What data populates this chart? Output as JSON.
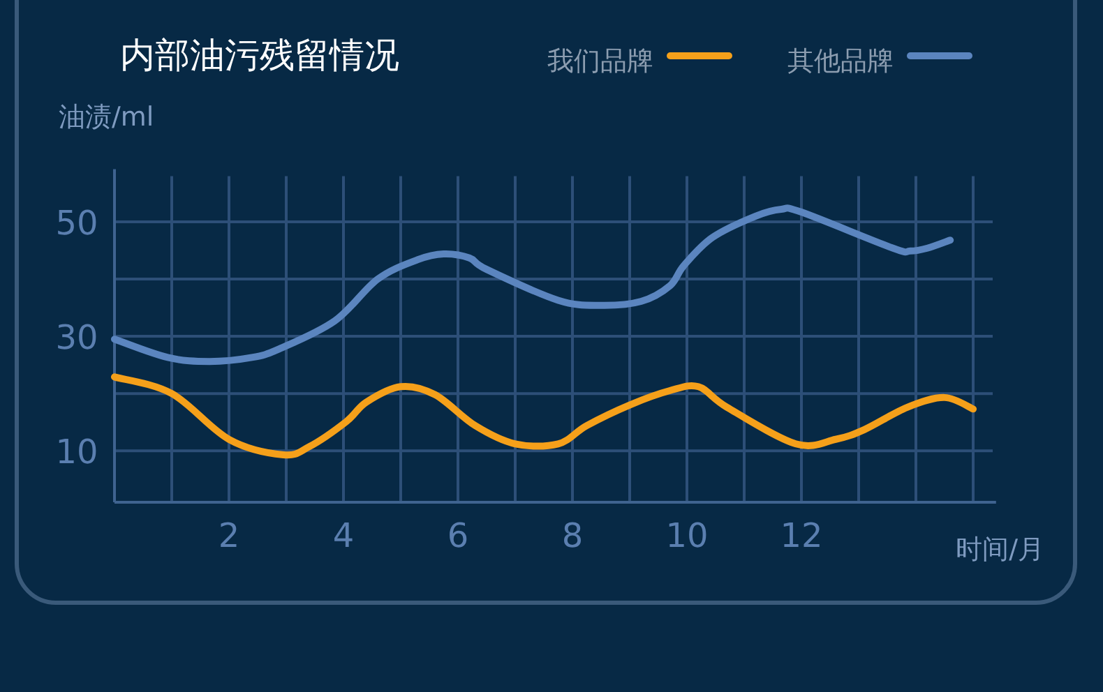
{
  "chart_data": {
    "type": "line",
    "title": "内部油污残留情况",
    "ylabel": "油渍/ml",
    "xlabel": "时间/月",
    "xlim": [
      0,
      15.4
    ],
    "ylim": [
      1,
      58
    ],
    "xticks": [
      {
        "value": 1,
        "label": null
      },
      2,
      {
        "value": 3,
        "label": null
      },
      4,
      {
        "value": 5,
        "label": null
      },
      6,
      {
        "value": 7,
        "label": null
      },
      8,
      {
        "value": 9,
        "label": null
      },
      10,
      {
        "value": 11,
        "label": null
      },
      12,
      {
        "value": 13,
        "label": null
      },
      {
        "value": 14,
        "label": null
      },
      {
        "value": 15,
        "label": null
      }
    ],
    "yticks": [
      10,
      {
        "value": 20,
        "label": null
      },
      30,
      {
        "value": 40,
        "label": null
      },
      50
    ],
    "grid": true,
    "legend": "top right",
    "marker": "none",
    "line_style": "solid",
    "series": [
      {
        "name": "我们品牌",
        "color": "#f5a01a",
        "x": [
          0,
          1,
          2,
          2.95,
          3.4,
          4.05,
          4.4,
          5.0,
          5.6,
          6.3,
          7.0,
          7.75,
          8.25,
          9.0,
          9.7,
          10.2,
          10.7,
          11.9,
          12.6,
          13.1,
          13.85,
          14.5,
          15.0
        ],
        "values": [
          22.9,
          20,
          12,
          9.3,
          10.7,
          15.1,
          18.5,
          21.2,
          19.8,
          14.4,
          11.2,
          11.2,
          14.4,
          18,
          20.5,
          21.2,
          17.6,
          11.2,
          12,
          13.7,
          17.6,
          19.3,
          17.3
        ]
      },
      {
        "name": "其他品牌",
        "color": "#5b85bf",
        "x": [
          0,
          0.93,
          1.66,
          2.4,
          2.88,
          3.85,
          4.6,
          5.3,
          5.75,
          6.2,
          6.5,
          7.75,
          8.5,
          9.2,
          9.7,
          9.95,
          10.45,
          11.2,
          11.65,
          12.0,
          13.6,
          13.9,
          14.2,
          14.6
        ],
        "values": [
          29.5,
          26.3,
          25.6,
          26.3,
          27.8,
          32.7,
          40,
          43.4,
          44.4,
          43.7,
          41.7,
          36.3,
          35.4,
          36.1,
          38.8,
          42.4,
          47.3,
          51,
          52.2,
          51.7,
          45.4,
          44.9,
          45.4,
          46.8
        ]
      }
    ]
  }
}
